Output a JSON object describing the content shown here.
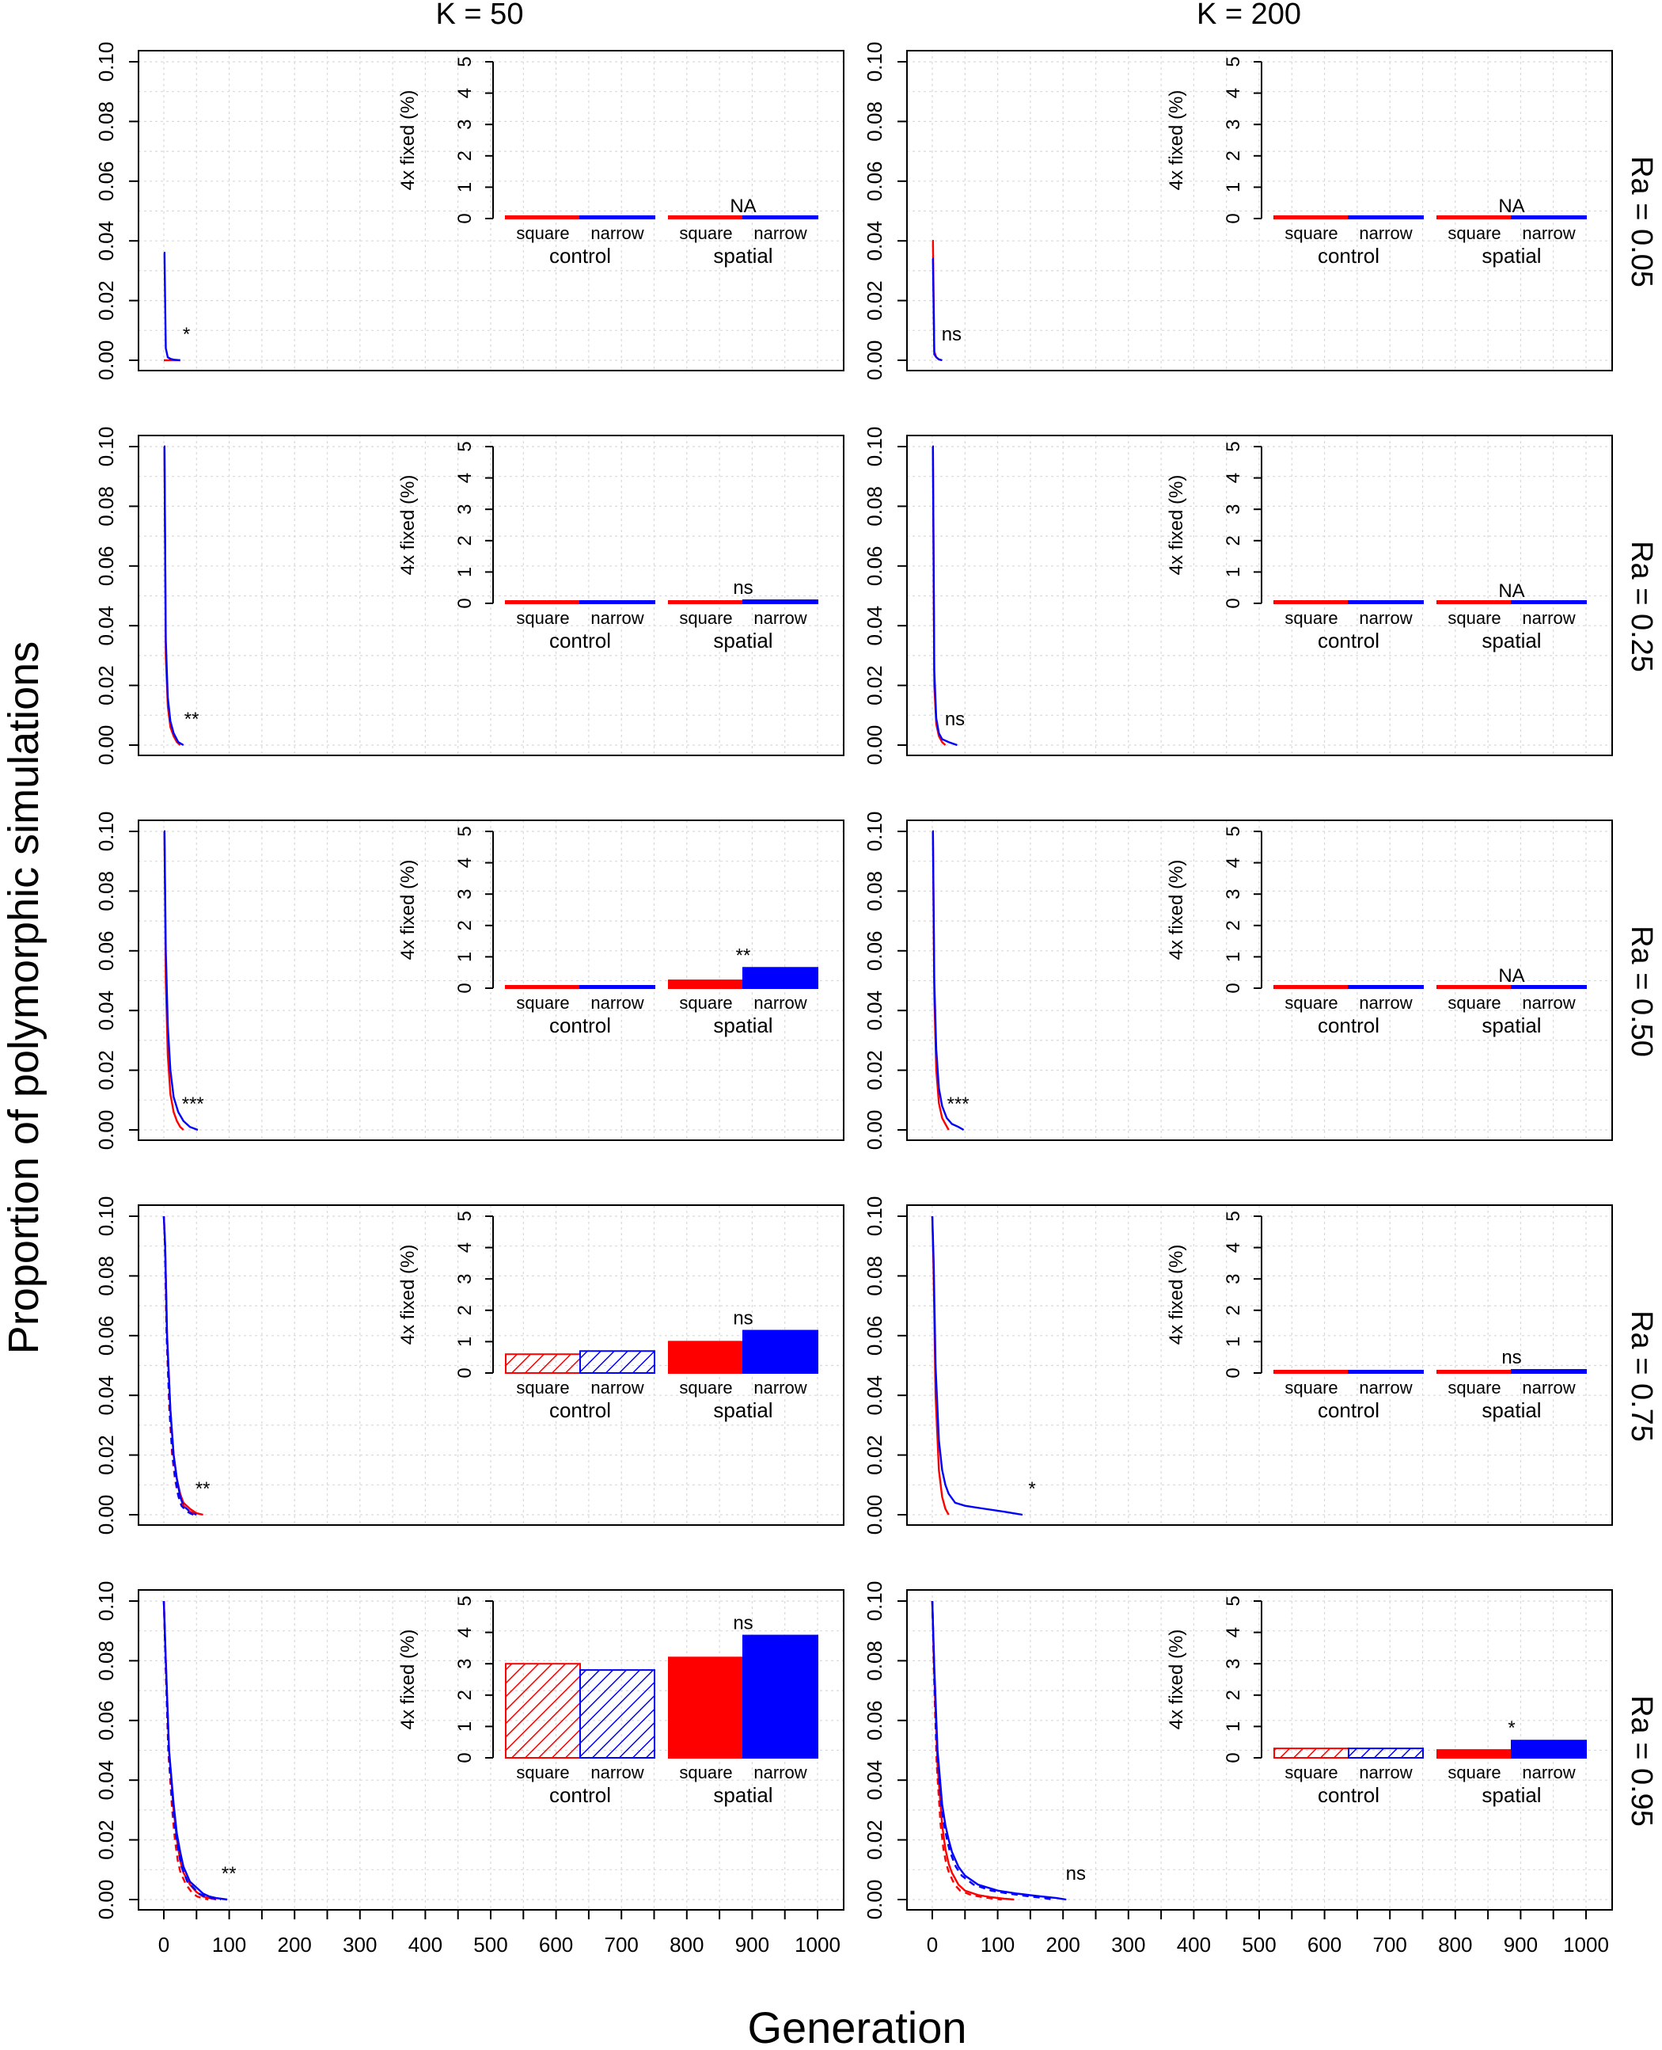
{
  "chart_data": {
    "type": "line",
    "title": "",
    "xlabel": "Generation",
    "ylabel": "Proportion of polymorphic simulations",
    "column_titles": [
      "K = 50",
      "K = 200"
    ],
    "row_titles": [
      "Ra = 0.05",
      "Ra = 0.25",
      "Ra = 0.50",
      "Ra = 0.75",
      "Ra = 0.95"
    ],
    "xlim": [
      0,
      1000
    ],
    "ylim": [
      0,
      0.1
    ],
    "x_ticks": [
      "0",
      "100",
      "200",
      "300",
      "400",
      "500",
      "600",
      "700",
      "800",
      "900",
      "1000"
    ],
    "y_ticks": [
      "0.00",
      "0.02",
      "0.04",
      "0.06",
      "0.08",
      "0.10"
    ],
    "grid": true,
    "series_colors": {
      "square": "#ff0000",
      "narrow": "#0000ff"
    },
    "inset": {
      "type": "bar",
      "ylabel": "4x fixed (%)",
      "ylim": [
        0,
        5
      ],
      "y_ticks": [
        "0",
        "1",
        "2",
        "3",
        "4",
        "5"
      ],
      "bar_labels": [
        "square",
        "narrow",
        "square",
        "narrow"
      ],
      "group_labels": [
        "control",
        "spatial"
      ]
    },
    "panels": [
      {
        "row": 0,
        "col": 0,
        "curve_sig": "*",
        "curve_sig_at": [
          20,
          0.005
        ],
        "curves": {
          "red_x": [
            0,
            5,
            10,
            15,
            20,
            25
          ],
          "red_y": [
            0.0,
            0.0,
            0.0,
            0.0,
            0.0,
            0.0
          ],
          "blue_x": [
            0,
            1,
            3,
            6,
            10,
            15,
            25
          ],
          "blue_y": [
            0.036,
            0.036,
            0.004,
            0.001,
            0.0005,
            0.0002,
            0.0
          ]
        },
        "bars": [
          0,
          0,
          0,
          0
        ],
        "control_hatched": false,
        "bar_sig": "NA"
      },
      {
        "row": 0,
        "col": 1,
        "curve_sig": "ns",
        "curve_sig_at": [
          15,
          0.005
        ],
        "curves": {
          "red_x": [
            0,
            1,
            3,
            6,
            10,
            15
          ],
          "red_y": [
            0.04,
            0.04,
            0.003,
            0.001,
            0.0003,
            0.0
          ],
          "blue_x": [
            0,
            1,
            3,
            6,
            10,
            15
          ],
          "blue_y": [
            0.034,
            0.034,
            0.002,
            0.001,
            0.0003,
            0.0
          ]
        },
        "bars": [
          0,
          0,
          0,
          0
        ],
        "control_hatched": false,
        "bar_sig": "NA"
      },
      {
        "row": 1,
        "col": 0,
        "curve_sig": "**",
        "curve_sig_at": [
          28,
          0.005
        ],
        "curves": {
          "red_x": [
            0,
            1,
            3,
            6,
            10,
            15,
            20,
            25
          ],
          "red_y": [
            0.1,
            0.1,
            0.03,
            0.013,
            0.006,
            0.003,
            0.001,
            0.0
          ],
          "blue_x": [
            0,
            1,
            3,
            6,
            10,
            15,
            22,
            30
          ],
          "blue_y": [
            0.1,
            0.1,
            0.035,
            0.016,
            0.008,
            0.004,
            0.001,
            0.0
          ]
        },
        "bars": [
          0,
          0,
          0.02,
          0.1
        ],
        "control_hatched": false,
        "bar_sig": "ns"
      },
      {
        "row": 1,
        "col": 1,
        "curve_sig": "ns",
        "curve_sig_at": [
          20,
          0.005
        ],
        "curves": {
          "red_x": [
            0,
            1,
            3,
            6,
            10,
            15,
            20
          ],
          "red_y": [
            0.1,
            0.1,
            0.02,
            0.007,
            0.003,
            0.001,
            0.0
          ],
          "blue_x": [
            0,
            1,
            3,
            6,
            10,
            15,
            25,
            38
          ],
          "blue_y": [
            0.1,
            0.1,
            0.025,
            0.009,
            0.004,
            0.002,
            0.001,
            0.0
          ]
        },
        "bars": [
          0,
          0,
          0,
          0
        ],
        "control_hatched": false,
        "bar_sig": "NA"
      },
      {
        "row": 2,
        "col": 0,
        "curve_sig": "***",
        "curve_sig_at": [
          30,
          0.005
        ],
        "curves": {
          "red_x": [
            0,
            1,
            3,
            6,
            10,
            15,
            20,
            25,
            30
          ],
          "red_y": [
            0.1,
            0.1,
            0.05,
            0.025,
            0.012,
            0.006,
            0.003,
            0.001,
            0.0
          ],
          "blue_x": [
            0,
            1,
            3,
            6,
            10,
            15,
            22,
            30,
            40,
            52
          ],
          "blue_y": [
            0.1,
            0.1,
            0.06,
            0.035,
            0.02,
            0.011,
            0.006,
            0.003,
            0.001,
            0.0
          ]
        },
        "bars": [
          0,
          0,
          0.25,
          0.65
        ],
        "control_hatched": false,
        "bar_sig": "**"
      },
      {
        "row": 2,
        "col": 1,
        "curve_sig": "***",
        "curve_sig_at": [
          25,
          0.005
        ],
        "curves": {
          "red_x": [
            0,
            1,
            3,
            6,
            10,
            15,
            20,
            25
          ],
          "red_y": [
            0.1,
            0.1,
            0.045,
            0.02,
            0.009,
            0.004,
            0.002,
            0.0
          ],
          "blue_x": [
            0,
            1,
            3,
            6,
            10,
            15,
            22,
            30,
            40,
            48
          ],
          "blue_y": [
            0.1,
            0.1,
            0.05,
            0.027,
            0.014,
            0.008,
            0.004,
            0.002,
            0.001,
            0.0
          ]
        },
        "bars": [
          0,
          0,
          0,
          0
        ],
        "control_hatched": false,
        "bar_sig": "NA"
      },
      {
        "row": 3,
        "col": 0,
        "curve_sig": "**",
        "curve_sig_at": [
          45,
          0.005
        ],
        "curves": {
          "red_x": [
            0,
            2,
            5,
            10,
            15,
            20,
            25,
            30,
            40,
            50,
            60
          ],
          "red_y": [
            0.1,
            0.09,
            0.06,
            0.035,
            0.02,
            0.012,
            0.007,
            0.004,
            0.002,
            0.0005,
            0.0
          ],
          "blue_x": [
            0,
            2,
            5,
            10,
            15,
            20,
            25,
            30,
            40,
            50
          ],
          "blue_y": [
            0.1,
            0.09,
            0.06,
            0.035,
            0.02,
            0.012,
            0.006,
            0.003,
            0.001,
            0.0
          ]
        },
        "bars": [
          0.6,
          0.7,
          1.0,
          1.35
        ],
        "control_hatched": true,
        "bar_sig": "ns"
      },
      {
        "row": 3,
        "col": 1,
        "curve_sig": "*",
        "curve_sig_at": [
          138,
          0.005
        ],
        "curves": {
          "red_x": [
            0,
            2,
            5,
            10,
            15,
            20,
            25
          ],
          "red_y": [
            0.1,
            0.08,
            0.04,
            0.015,
            0.006,
            0.002,
            0.0
          ],
          "blue_x": [
            0,
            2,
            5,
            10,
            15,
            20,
            25,
            35,
            50,
            80,
            110,
            138
          ],
          "blue_y": [
            0.1,
            0.085,
            0.05,
            0.025,
            0.015,
            0.01,
            0.007,
            0.004,
            0.003,
            0.002,
            0.001,
            0.0
          ]
        },
        "bars": [
          0,
          0,
          0.02,
          0.1
        ],
        "control_hatched": false,
        "bar_sig": "ns"
      },
      {
        "row": 4,
        "col": 0,
        "curve_sig": "**",
        "curve_sig_at": [
          85,
          0.005
        ],
        "curves": {
          "red_x": [
            0,
            3,
            8,
            15,
            20,
            25,
            30,
            40,
            50,
            60,
            70,
            80
          ],
          "red_y": [
            0.1,
            0.08,
            0.05,
            0.03,
            0.02,
            0.013,
            0.009,
            0.005,
            0.0025,
            0.001,
            0.0005,
            0.0
          ],
          "blue_x": [
            0,
            3,
            8,
            15,
            20,
            25,
            30,
            40,
            50,
            60,
            70,
            80,
            97
          ],
          "blue_y": [
            0.1,
            0.08,
            0.05,
            0.032,
            0.022,
            0.016,
            0.011,
            0.006,
            0.004,
            0.002,
            0.001,
            0.0005,
            0.0
          ]
        },
        "bars": [
          3.0,
          2.8,
          3.2,
          3.9
        ],
        "control_hatched": true,
        "bar_sig": "ns"
      },
      {
        "row": 4,
        "col": 1,
        "curve_sig": "ns",
        "curve_sig_at": [
          205,
          0.005
        ],
        "curves": {
          "red_x": [
            0,
            3,
            8,
            15,
            20,
            25,
            30,
            40,
            50,
            70,
            90,
            110,
            125
          ],
          "red_y": [
            0.1,
            0.075,
            0.045,
            0.025,
            0.017,
            0.012,
            0.009,
            0.005,
            0.003,
            0.0015,
            0.0008,
            0.0003,
            0.0
          ],
          "blue_x": [
            0,
            3,
            8,
            15,
            20,
            25,
            30,
            40,
            50,
            70,
            100,
            130,
            160,
            190,
            205
          ],
          "blue_y": [
            0.1,
            0.078,
            0.05,
            0.032,
            0.025,
            0.02,
            0.016,
            0.011,
            0.008,
            0.005,
            0.003,
            0.002,
            0.0012,
            0.0005,
            0.0
          ]
        },
        "bars": [
          0.3,
          0.3,
          0.25,
          0.55
        ],
        "control_hatched": true,
        "bar_sig": "*"
      }
    ]
  }
}
